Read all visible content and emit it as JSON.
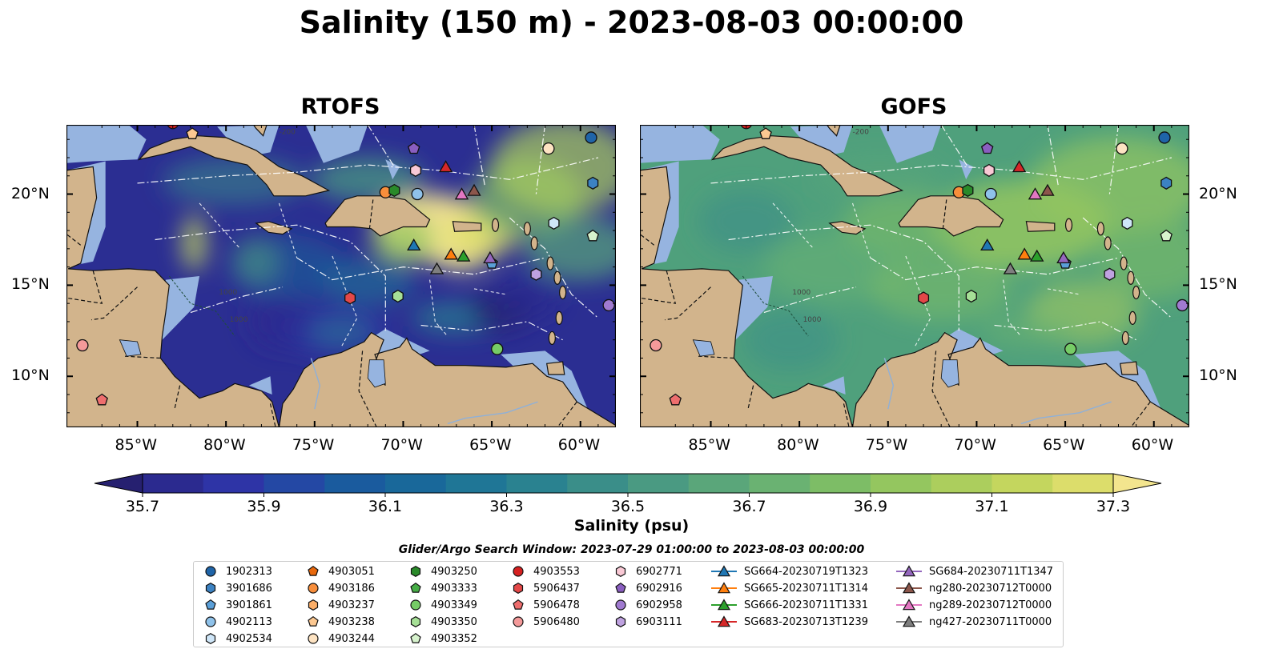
{
  "title": "Salinity (150 m) - 2023-08-03 00:00:00",
  "panels": [
    {
      "title": "RTOFS",
      "model": "rtofs"
    },
    {
      "title": "GOFS",
      "model": "gofs"
    }
  ],
  "lon_ticks": [
    "85°W",
    "80°W",
    "75°W",
    "70°W",
    "65°W",
    "60°W"
  ],
  "lat_ticks": [
    "20°N",
    "15°N",
    "10°N"
  ],
  "contour_labels": [
    "1000",
    "1000",
    "-200"
  ],
  "colorbar": {
    "label": "Salinity (psu)",
    "ticks": [
      "35.7",
      "35.9",
      "36.1",
      "36.3",
      "36.5",
      "36.7",
      "36.9",
      "37.1",
      "37.3"
    ],
    "colors": [
      "#262070",
      "#2b2a8f",
      "#2e34a6",
      "#2448a4",
      "#1a5b9e",
      "#19689a",
      "#1f7696",
      "#2a8290",
      "#3a8e89",
      "#4a9a82",
      "#5aa67a",
      "#6ab272",
      "#7dbd66",
      "#94c65f",
      "#acce5d",
      "#c4d65e",
      "#dcdd6b",
      "#f3e58e"
    ],
    "extend": "both"
  },
  "legend": {
    "title": "Glider/Argo Search Window: 2023-07-29 01:00:00 to 2023-08-03 00:00:00",
    "columns": [
      [
        {
          "label": "1902313",
          "marker": "circle",
          "color": "#1f64a8"
        },
        {
          "label": "3901686",
          "marker": "hexagon",
          "color": "#3c82c2"
        },
        {
          "label": "3901861",
          "marker": "pentagon",
          "color": "#5a9fd8"
        },
        {
          "label": "4902113",
          "marker": "circle",
          "color": "#8fc2ea"
        },
        {
          "label": "4902534",
          "marker": "hexagon",
          "color": "#cfe6f8"
        }
      ],
      [
        {
          "label": "4903051",
          "marker": "pentagon",
          "color": "#e8680c"
        },
        {
          "label": "4903186",
          "marker": "circle",
          "color": "#f88e3b"
        },
        {
          "label": "4903237",
          "marker": "hexagon",
          "color": "#fbae68"
        },
        {
          "label": "4903238",
          "marker": "pentagon",
          "color": "#fcc891"
        },
        {
          "label": "4903244",
          "marker": "circle",
          "color": "#fde3c2"
        }
      ],
      [
        {
          "label": "4903250",
          "marker": "hexagon",
          "color": "#2a8a2a"
        },
        {
          "label": "4903333",
          "marker": "pentagon",
          "color": "#46ad46"
        },
        {
          "label": "4903349",
          "marker": "circle",
          "color": "#76cc66"
        },
        {
          "label": "4903350",
          "marker": "hexagon",
          "color": "#a6e096"
        },
        {
          "label": "4903352",
          "marker": "pentagon",
          "color": "#d7f3cd"
        }
      ],
      [
        {
          "label": "4903553",
          "marker": "circle",
          "color": "#d62020"
        },
        {
          "label": "5906437",
          "marker": "hexagon",
          "color": "#e44848"
        },
        {
          "label": "5906478",
          "marker": "pentagon",
          "color": "#ee6e6e"
        },
        {
          "label": "5906480",
          "marker": "circle",
          "color": "#f49a9a"
        }
      ],
      [
        {
          "label": "6902771",
          "marker": "hexagon",
          "color": "#f9c9d5"
        },
        {
          "label": "6902916",
          "marker": "pentagon",
          "color": "#8a5ec0"
        },
        {
          "label": "6902958",
          "marker": "circle",
          "color": "#a07ad0"
        },
        {
          "label": "6903111",
          "marker": "hexagon",
          "color": "#bfa2e0"
        }
      ],
      [
        {
          "label": "SG664-20230719T1323",
          "marker": "triangle-line",
          "color": "#1f77b4"
        },
        {
          "label": "SG665-20230711T1314",
          "marker": "triangle-line",
          "color": "#ff7f0e"
        },
        {
          "label": "SG666-20230711T1331",
          "marker": "triangle-line",
          "color": "#2ca02c"
        },
        {
          "label": "SG683-20230713T1239",
          "marker": "triangle-line",
          "color": "#d62728"
        }
      ],
      [
        {
          "label": "SG684-20230711T1347",
          "marker": "triangle-line",
          "color": "#9467bd"
        },
        {
          "label": "ng280-20230712T0000",
          "marker": "triangle-line",
          "color": "#8c564b"
        },
        {
          "label": "ng289-20230712T0000",
          "marker": "triangle-line",
          "color": "#e377c2"
        },
        {
          "label": "ng427-20230711T0000",
          "marker": "triangle-line",
          "color": "#7f7f7f"
        }
      ]
    ]
  },
  "map_colors": {
    "land": "#d2b48c",
    "shelf": "#96b4e0",
    "rtofs_base": "#2b2e92",
    "gofs_base": "#4fa07c"
  },
  "observations": [
    {
      "id": "4903553",
      "lon": -83.0,
      "lat": 23.9,
      "marker": "circle",
      "color": "#d62020"
    },
    {
      "id": "4903238",
      "lon": -81.9,
      "lat": 23.3,
      "marker": "pentagon",
      "color": "#fcc891"
    },
    {
      "id": "6902916",
      "lon": -69.4,
      "lat": 22.5,
      "marker": "pentagon",
      "color": "#8a5ec0"
    },
    {
      "id": "6902771",
      "lon": -69.3,
      "lat": 21.3,
      "marker": "hexagon",
      "color": "#f9c9d5"
    },
    {
      "id": "4903186",
      "lon": -71.0,
      "lat": 20.1,
      "marker": "circle",
      "color": "#f88e3b"
    },
    {
      "id": "4903250",
      "lon": -70.5,
      "lat": 20.2,
      "marker": "hexagon",
      "color": "#2a8a2a"
    },
    {
      "id": "4902113",
      "lon": -69.2,
      "lat": 20.0,
      "marker": "circle",
      "color": "#8fc2ea"
    },
    {
      "id": "4903244",
      "lon": -61.8,
      "lat": 22.5,
      "marker": "circle",
      "color": "#fde3c2"
    },
    {
      "id": "1902313",
      "lon": -59.4,
      "lat": 23.1,
      "marker": "circle",
      "color": "#1f64a8"
    },
    {
      "id": "3901686",
      "lon": -59.3,
      "lat": 20.6,
      "marker": "hexagon",
      "color": "#3c82c2"
    },
    {
      "id": "4902534",
      "lon": -61.5,
      "lat": 18.4,
      "marker": "hexagon",
      "color": "#cfe6f8"
    },
    {
      "id": "4903352",
      "lon": -59.3,
      "lat": 17.7,
      "marker": "pentagon",
      "color": "#d7f3cd"
    },
    {
      "id": "3901861",
      "lon": -65.0,
      "lat": 16.2,
      "marker": "pentagon",
      "color": "#5a9fd8"
    },
    {
      "id": "6903111",
      "lon": -62.5,
      "lat": 15.6,
      "marker": "hexagon",
      "color": "#bfa2e0"
    },
    {
      "id": "6902958",
      "lon": -58.4,
      "lat": 13.9,
      "marker": "circle",
      "color": "#a07ad0"
    },
    {
      "id": "5906437",
      "lon": -73.0,
      "lat": 14.3,
      "marker": "hexagon",
      "color": "#e44848"
    },
    {
      "id": "4903350",
      "lon": -70.3,
      "lat": 14.4,
      "marker": "hexagon",
      "color": "#a6e096"
    },
    {
      "id": "4903349",
      "lon": -64.7,
      "lat": 11.5,
      "marker": "circle",
      "color": "#76cc66"
    },
    {
      "id": "5906480",
      "lon": -88.1,
      "lat": 11.7,
      "marker": "circle",
      "color": "#f49a9a"
    },
    {
      "id": "5906478",
      "lon": -87.0,
      "lat": 8.7,
      "marker": "pentagon",
      "color": "#ee6e6e"
    },
    {
      "id": "SG683-20230713T1239",
      "lon": -67.6,
      "lat": 21.5,
      "marker": "triangle",
      "color": "#d62728"
    },
    {
      "id": "ng289-20230712T0000",
      "lon": -66.7,
      "lat": 20.0,
      "marker": "triangle",
      "color": "#e377c2"
    },
    {
      "id": "ng280-20230712T0000",
      "lon": -66.0,
      "lat": 20.2,
      "marker": "triangle",
      "color": "#8c564b"
    },
    {
      "id": "SG664-20230719T1323",
      "lon": -69.4,
      "lat": 17.2,
      "marker": "triangle",
      "color": "#1f77b4"
    },
    {
      "id": "SG665-20230711T1314",
      "lon": -67.3,
      "lat": 16.7,
      "marker": "triangle",
      "color": "#ff7f0e"
    },
    {
      "id": "SG666-20230711T1331",
      "lon": -66.6,
      "lat": 16.6,
      "marker": "triangle",
      "color": "#2ca02c"
    },
    {
      "id": "SG684-20230711T1347",
      "lon": -65.1,
      "lat": 16.5,
      "marker": "triangle",
      "color": "#9467bd"
    },
    {
      "id": "ng427-20230711T0000",
      "lon": -68.1,
      "lat": 15.9,
      "marker": "triangle",
      "color": "#7f7f7f"
    }
  ]
}
